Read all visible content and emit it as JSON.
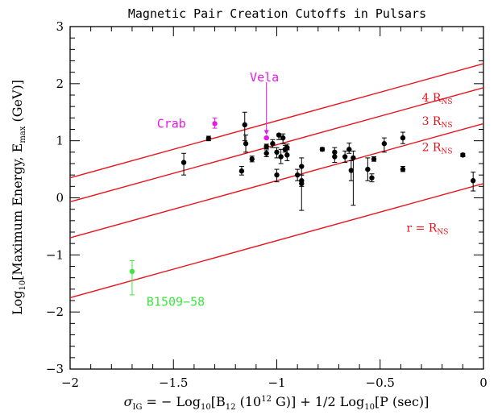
{
  "chart_data": {
    "type": "scatter",
    "title": "Magnetic Pair Creation Cutoffs in Pulsars",
    "xlabel": {
      "sigma": "σ",
      "sigma_sub": "IG",
      "eq": " = − Log",
      "log_sub": "10",
      "b": "[B",
      "b_sub": "12",
      "b_rest": " (10",
      "b_sup": "12",
      "g_rest": " G)] + 1/2 Log",
      "log2_sub": "10",
      "p_rest": "[P (sec)]"
    },
    "ylabel": {
      "pre": "Log",
      "pre_sub": "10",
      "mid": "[Maximum Energy, E",
      "e_sub": "max",
      "post": " (GeV)]"
    },
    "xlim": [
      -2,
      0
    ],
    "ylim": [
      -3,
      3
    ],
    "xticks": [
      {
        "v": -2,
        "label": "−2"
      },
      {
        "v": -1.5,
        "label": "−1.5"
      },
      {
        "v": -1,
        "label": "−1"
      },
      {
        "v": -0.5,
        "label": "−0.5"
      },
      {
        "v": 0,
        "label": "0"
      }
    ],
    "yticks": [
      {
        "v": -3,
        "label": "−3"
      },
      {
        "v": -2,
        "label": "−2"
      },
      {
        "v": -1,
        "label": "−1"
      },
      {
        "v": 0,
        "label": "0"
      },
      {
        "v": 1,
        "label": "1"
      },
      {
        "v": 2,
        "label": "2"
      },
      {
        "v": 3,
        "label": "3"
      }
    ],
    "grid": false,
    "colors": {
      "points": "#000000",
      "lines": "#e8141e",
      "crab": "#e619e6",
      "vela": "#e619e6",
      "b1509": "#3fe63f"
    },
    "lines": [
      {
        "label": "4 R",
        "sub": "NS",
        "intercept": 2.35,
        "label_x": -0.15,
        "label_y": 1.69
      },
      {
        "label": "3 R",
        "sub": "NS",
        "intercept": 1.93,
        "label_x": -0.15,
        "label_y": 1.28
      },
      {
        "label": "2 R",
        "sub": "NS",
        "intercept": 1.3,
        "label_x": -0.15,
        "label_y": 0.82
      },
      {
        "label": "r = R",
        "sub": "NS",
        "intercept": 0.25,
        "label_x": -0.17,
        "label_y": -0.59
      }
    ],
    "line_slope": 1.0,
    "points": [
      {
        "x": -1.45,
        "y": 0.62,
        "lo": 0.4,
        "hi": 0.78
      },
      {
        "x": -1.33,
        "y": 1.04,
        "lo": 1.0,
        "hi": 1.08
      },
      {
        "x": -1.17,
        "y": 0.47,
        "lo": 0.4,
        "hi": 0.55
      },
      {
        "x": -1.155,
        "y": 1.28,
        "lo": 1.0,
        "hi": 1.5
      },
      {
        "x": -1.15,
        "y": 0.95,
        "lo": 0.8,
        "hi": 1.1
      },
      {
        "x": -1.12,
        "y": 0.68,
        "lo": 0.63,
        "hi": 0.73
      },
      {
        "x": -1.05,
        "y": 0.78,
        "lo": 0.72,
        "hi": 0.84
      },
      {
        "x": -1.05,
        "y": 0.9,
        "lo": 0.86,
        "hi": 0.94
      },
      {
        "x": -1.02,
        "y": 0.95,
        "lo": 0.88,
        "hi": 1.02
      },
      {
        "x": -1.0,
        "y": 0.8,
        "lo": 0.7,
        "hi": 0.88
      },
      {
        "x": -1.0,
        "y": 0.4,
        "lo": 0.28,
        "hi": 0.5
      },
      {
        "x": -0.99,
        "y": 1.1,
        "lo": 1.02,
        "hi": 1.12
      },
      {
        "x": -0.98,
        "y": 0.72,
        "lo": 0.6,
        "hi": 0.85
      },
      {
        "x": -0.97,
        "y": 1.05,
        "lo": 0.95,
        "hi": 1.12
      },
      {
        "x": -0.96,
        "y": 0.85,
        "lo": 0.8,
        "hi": 0.92
      },
      {
        "x": -0.95,
        "y": 0.75,
        "lo": 0.65,
        "hi": 0.85
      },
      {
        "x": -0.95,
        "y": 0.88,
        "lo": 0.84,
        "hi": 0.94
      },
      {
        "x": -0.9,
        "y": 0.4,
        "lo": 0.3,
        "hi": 0.5
      },
      {
        "x": -0.88,
        "y": 0.55,
        "lo": 0.4,
        "hi": 0.7
      },
      {
        "x": -0.88,
        "y": 0.3,
        "lo": 0.2,
        "hi": 0.4
      },
      {
        "x": -0.88,
        "y": 0.25,
        "lo": -0.22,
        "hi": 0.3
      },
      {
        "x": -0.78,
        "y": 0.85,
        "lo": 0.82,
        "hi": 0.88
      },
      {
        "x": -0.72,
        "y": 0.8,
        "lo": 0.72,
        "hi": 0.88
      },
      {
        "x": -0.72,
        "y": 0.72,
        "lo": 0.62,
        "hi": 0.8
      },
      {
        "x": -0.67,
        "y": 0.72,
        "lo": 0.62,
        "hi": 0.82
      },
      {
        "x": -0.65,
        "y": 0.85,
        "lo": 0.78,
        "hi": 0.96
      },
      {
        "x": -0.64,
        "y": 0.48,
        "lo": 0.3,
        "hi": 0.65
      },
      {
        "x": -0.63,
        "y": 0.7,
        "lo": -0.13,
        "hi": 0.82
      },
      {
        "x": -0.56,
        "y": 0.5,
        "lo": 0.3,
        "hi": 0.7
      },
      {
        "x": -0.54,
        "y": 0.35,
        "lo": 0.28,
        "hi": 0.42
      },
      {
        "x": -0.53,
        "y": 0.68,
        "lo": 0.64,
        "hi": 0.72
      },
      {
        "x": -0.48,
        "y": 0.95,
        "lo": 0.8,
        "hi": 1.05
      },
      {
        "x": -0.39,
        "y": 1.05,
        "lo": 0.95,
        "hi": 1.15
      },
      {
        "x": -0.39,
        "y": 0.5,
        "lo": 0.46,
        "hi": 0.55
      },
      {
        "x": -0.1,
        "y": 0.75,
        "lo": 0.72,
        "hi": 0.78
      },
      {
        "x": -0.05,
        "y": 0.3,
        "lo": 0.12,
        "hi": 0.45
      }
    ],
    "special_points": [
      {
        "name": "Crab",
        "x": -1.3,
        "y": 1.3,
        "lo": 1.22,
        "hi": 1.4,
        "color_key": "crab",
        "label_x": -1.58,
        "label_y": 1.3
      },
      {
        "name": "Vela",
        "x": -1.05,
        "y": 1.05,
        "lo": 1.04,
        "hi": 1.06,
        "color_key": "vela",
        "label_x": -1.06,
        "label_y": 2.11,
        "arrow": true
      },
      {
        "name": "B1509−58",
        "x": -1.7,
        "y": -1.29,
        "lo": -1.7,
        "hi": -1.1,
        "color_key": "b1509",
        "label_x": -1.63,
        "label_y": -1.82
      }
    ]
  }
}
